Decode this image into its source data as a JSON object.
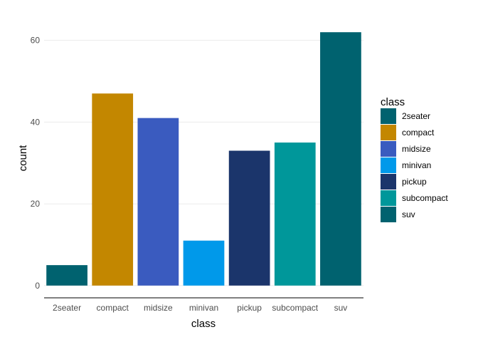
{
  "chart_data": {
    "type": "bar",
    "categories": [
      "2seater",
      "compact",
      "midsize",
      "minivan",
      "pickup",
      "subcompact",
      "suv"
    ],
    "values": [
      5,
      47,
      41,
      11,
      33,
      35,
      62
    ],
    "colors": [
      "#00626f",
      "#c38700",
      "#3a5bbf",
      "#0099ea",
      "#1b356b",
      "#00979a",
      "#00626f"
    ],
    "xlabel": "class",
    "ylabel": "count",
    "ylim": [
      -3,
      65
    ],
    "yticks": [
      0,
      20,
      40,
      60
    ],
    "grid": "horizontal",
    "legend": {
      "title": "class",
      "position": "right",
      "entries": [
        "2seater",
        "compact",
        "midsize",
        "minivan",
        "pickup",
        "subcompact",
        "suv"
      ]
    }
  }
}
